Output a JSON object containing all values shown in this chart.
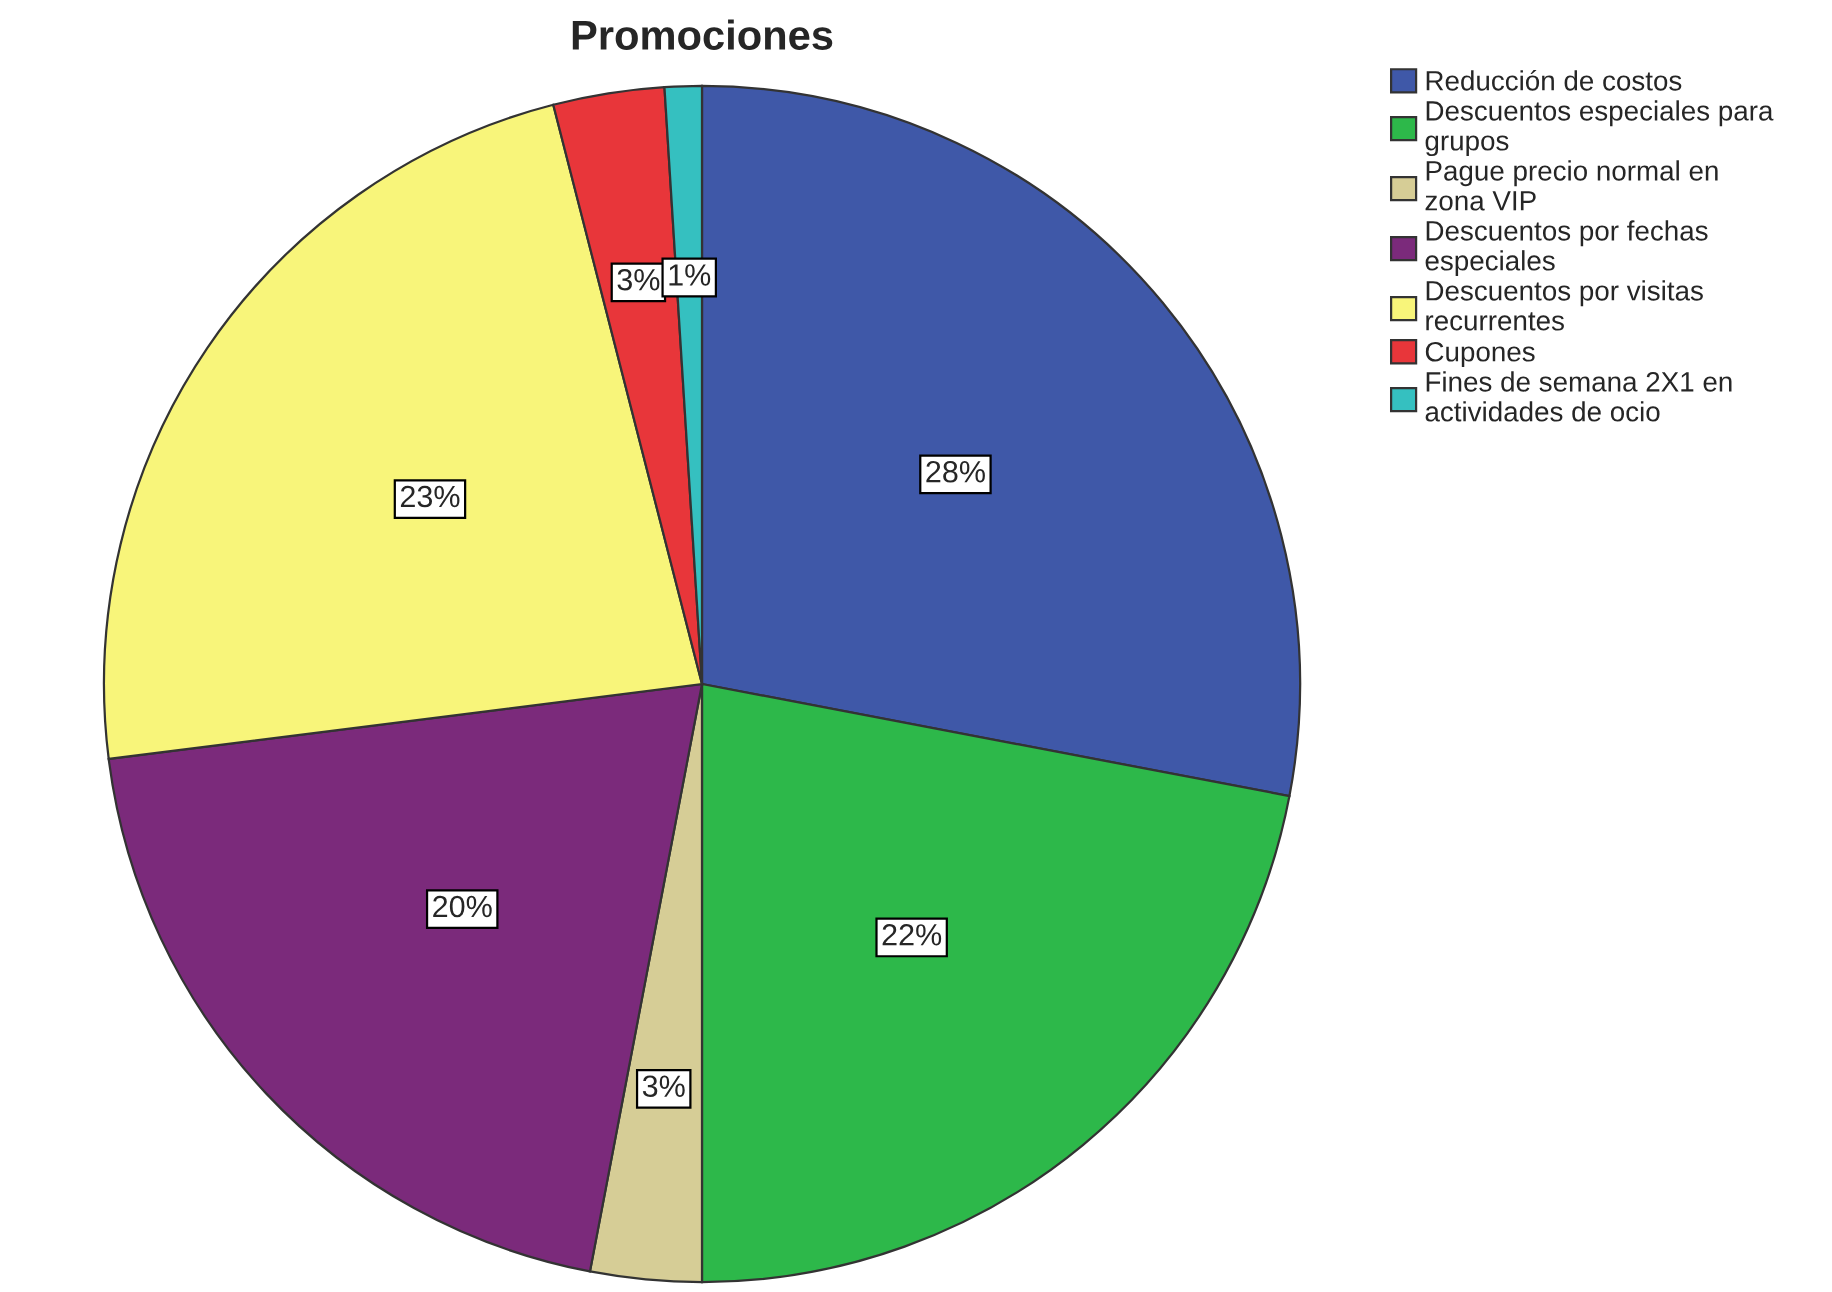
{
  "chart_data": {
    "type": "pie",
    "title": "Promociones",
    "categories": [
      "Reducción de costos",
      "Descuentos especiales para\ngrupos",
      "Pague precio normal en\nzona VIP",
      "Descuentos por fechas\nespeciales",
      "Descuentos por visitas\nrecurrentes",
      "Cupones",
      "Fines de semana 2X1 en\nactividades de ocio"
    ],
    "values": [
      28,
      22,
      3,
      20,
      23,
      3,
      1
    ],
    "value_labels": [
      "28%",
      "22%",
      "3%",
      "20%",
      "23%",
      "3%",
      "1%"
    ],
    "colors": [
      "#3f58a8",
      "#2db84a",
      "#d6cd96",
      "#7b2a7b",
      "#f8f57a",
      "#e8363a",
      "#35c0c0"
    ],
    "legend": "top right"
  }
}
